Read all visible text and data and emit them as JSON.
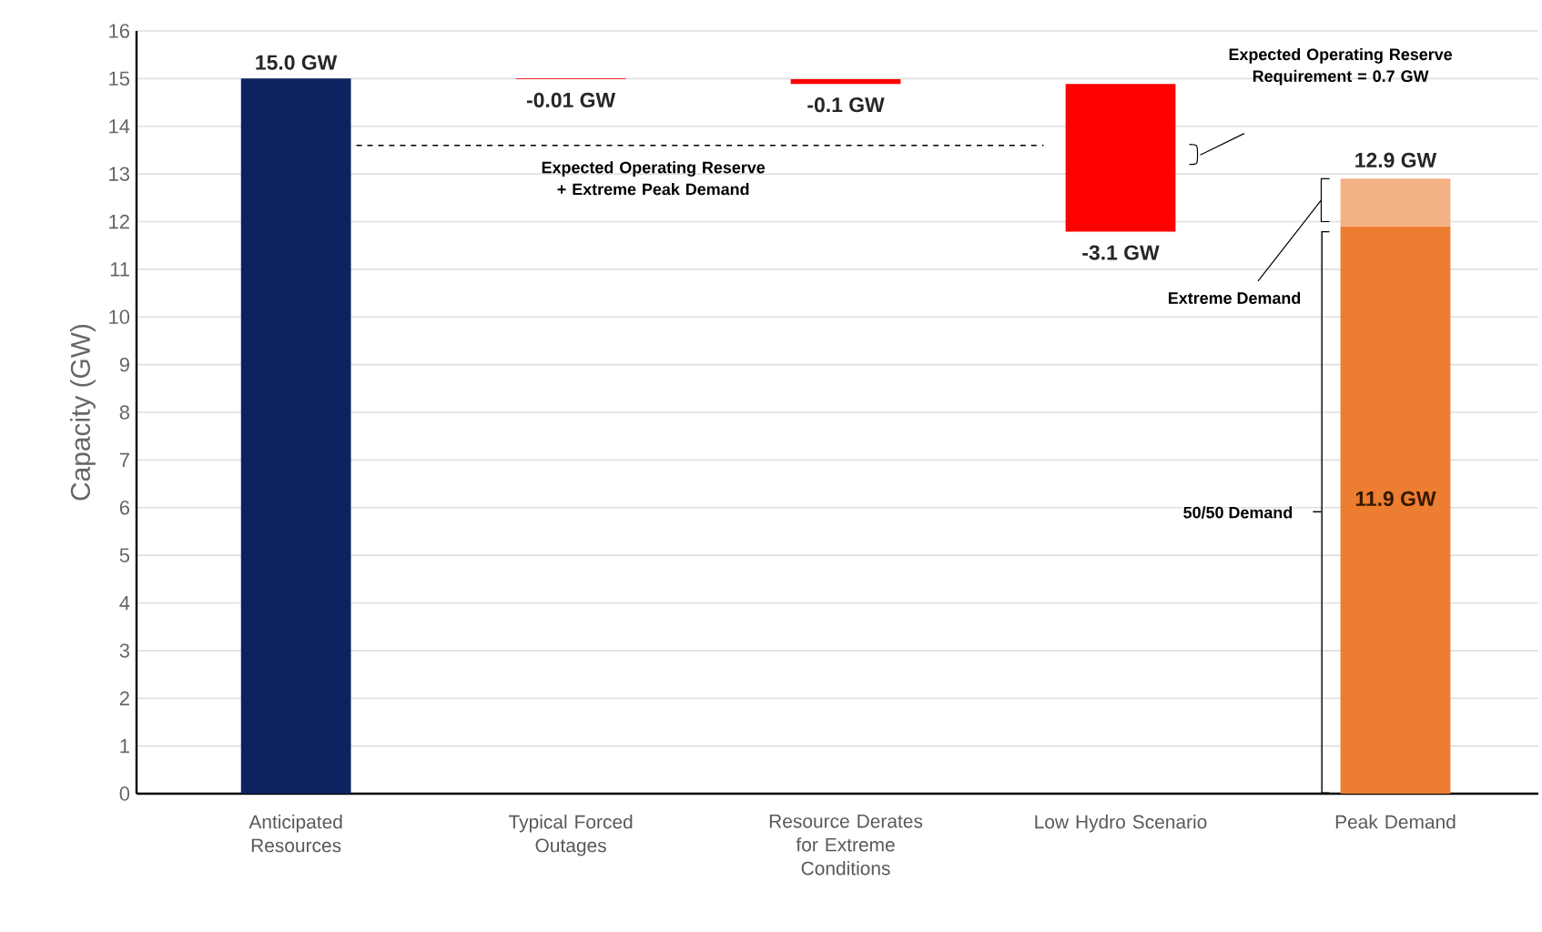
{
  "chart_data": {
    "type": "bar",
    "ylabel": "Capacity (GW)",
    "categories": [
      "Anticipated Resources",
      "Typical Forced Outages",
      "Resource Derates for Extreme Conditions",
      "Low Hydro Scenario",
      "Peak Demand"
    ],
    "series": [
      {
        "values": [
          15.0,
          -0.01,
          -0.1,
          -3.1,
          11.9
        ],
        "base": [
          0,
          15.0,
          14.99,
          14.89,
          0
        ],
        "colors": [
          "#0d2360",
          "#ff0000",
          "#ff0000",
          "#ff0000",
          "#ed7d31"
        ],
        "value_labels": [
          "15.0 GW",
          "-0.01 GW",
          "-0.1 GW",
          "-3.1 GW",
          "11.9 GW"
        ]
      },
      {
        "values": [
          null,
          null,
          null,
          null,
          1.0
        ],
        "base": [
          null,
          null,
          null,
          null,
          11.9
        ],
        "colors": [
          null,
          null,
          null,
          null,
          "#f4b183"
        ]
      }
    ],
    "totals": [
      null,
      null,
      null,
      null,
      "12.9 GW"
    ],
    "ylim": [
      0,
      16
    ],
    "yticks": [
      0,
      1,
      2,
      3,
      4,
      5,
      6,
      7,
      8,
      9,
      10,
      11,
      12,
      13,
      14,
      15,
      16
    ],
    "grid": "y",
    "ref_lines": [
      {
        "axis": "y",
        "value": 13.6,
        "label": "Expected Operating Reserve + Extreme Peak Demand",
        "line_style": "dashed",
        "color": "#000000"
      }
    ],
    "annotations": [
      "Expected Operating Reserve Requirement = 0.7 GW",
      "Extreme Demand",
      "50/50 Demand"
    ]
  }
}
